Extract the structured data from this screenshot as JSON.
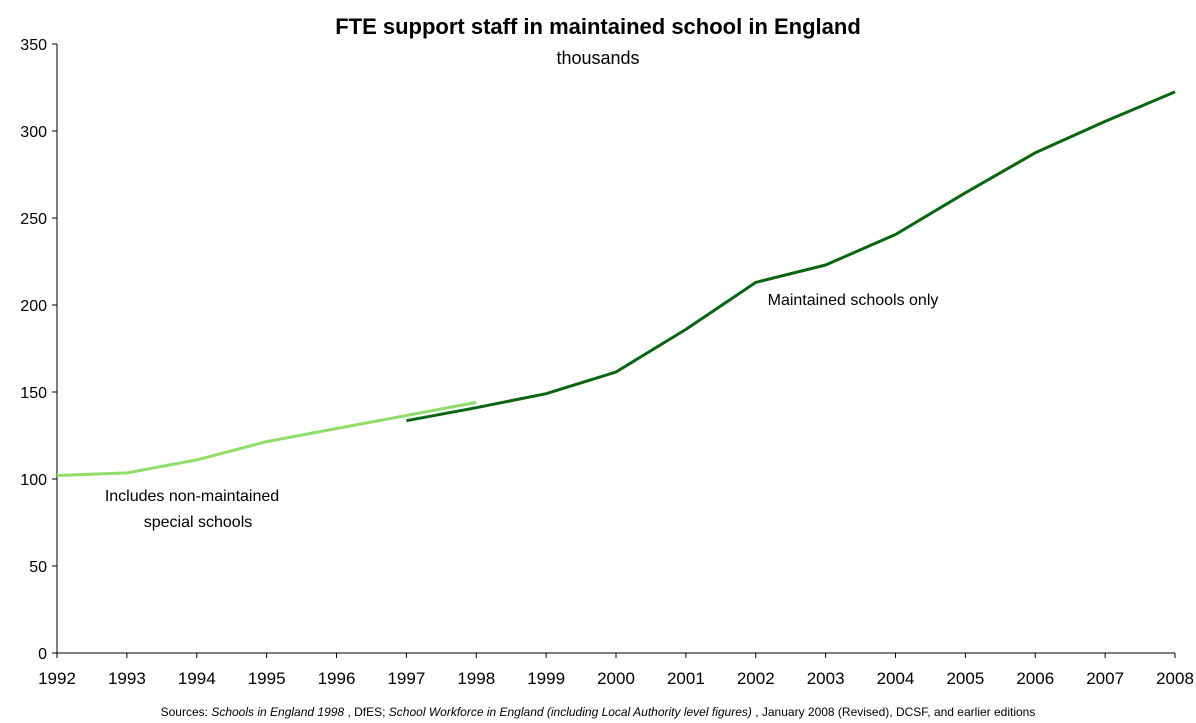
{
  "chart_data": {
    "type": "line",
    "title": "FTE support staff in maintained school in England",
    "subtitle": "thousands",
    "x": [
      1992,
      1993,
      1994,
      1995,
      1996,
      1997,
      1998,
      1999,
      2000,
      2001,
      2002,
      2003,
      2004,
      2005,
      2006,
      2007,
      2008
    ],
    "xlim": [
      1992,
      2008
    ],
    "ylim": [
      0,
      350
    ],
    "yticks": [
      0,
      50,
      100,
      150,
      200,
      250,
      300,
      350
    ],
    "grid": false,
    "series": [
      {
        "x": [
          1992,
          1993,
          1994,
          1995,
          1996,
          1997,
          1998
        ],
        "values": [
          102,
          103.5,
          111,
          121.5,
          129,
          136.5,
          144
        ],
        "color": "#8fde6a"
      },
      {
        "x": [
          1997,
          1998,
          1999,
          2000,
          2001,
          2002,
          2003,
          2004,
          2005,
          2006,
          2007,
          2008
        ],
        "values": [
          133.5,
          141,
          149,
          161.5,
          186,
          213,
          223,
          240.5,
          264.5,
          287.5,
          305.5,
          322.5
        ],
        "color": "#0a6410"
      }
    ],
    "annotations": [
      {
        "text": "Maintained schools only",
        "series": 1
      },
      {
        "text": "Includes non-maintained",
        "series": 0
      },
      {
        "text": "special schools",
        "series": 0
      }
    ]
  },
  "footer": {
    "p1": "Sources: ",
    "p2": "Schools in England 1998",
    "p3": " , DfES; ",
    "p4": "School Workforce in England (including Local Authority level figures)",
    "p5": " , January 2008 (Revised), DCSF, and earlier editions"
  }
}
